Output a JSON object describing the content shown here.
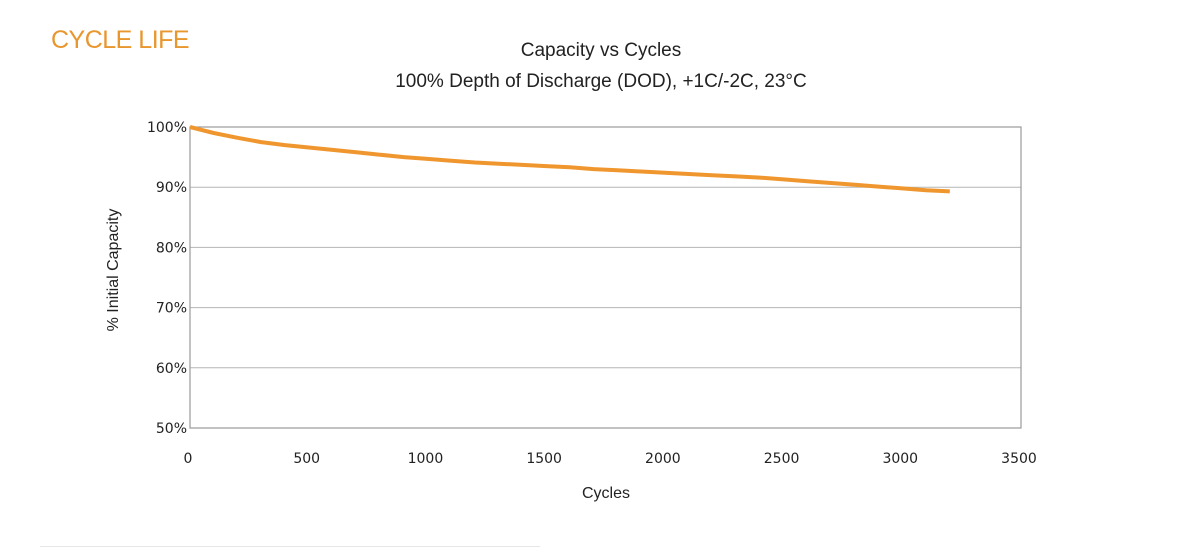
{
  "section_title": "CYCLE LIFE",
  "chart_data": {
    "type": "line",
    "title": "Capacity vs Cycles",
    "subtitle": "100% Depth of Discharge (DOD), +1C/-2C, 23°C",
    "xlabel": "Cycles",
    "ylabel": "% Initial Capacity",
    "xlim": [
      0,
      3500
    ],
    "ylim": [
      50,
      100
    ],
    "x_ticks": [
      0,
      500,
      1000,
      1500,
      2000,
      2500,
      3000,
      3500
    ],
    "x_tick_labels": [
      "0",
      "500",
      "1000",
      "1500",
      "2000",
      "2500",
      "3000",
      "3500"
    ],
    "y_ticks": [
      50,
      60,
      70,
      80,
      90,
      100
    ],
    "y_tick_labels": [
      "50%",
      "60%",
      "70%",
      "80%",
      "90%",
      "100%"
    ],
    "grid": true,
    "series": [
      {
        "name": "Capacity",
        "color": "#f0962e",
        "x": [
          0,
          100,
          200,
          300,
          400,
          500,
          600,
          700,
          800,
          900,
          1000,
          1100,
          1200,
          1300,
          1400,
          1500,
          1600,
          1700,
          1800,
          1900,
          2000,
          2100,
          2200,
          2300,
          2400,
          2500,
          2600,
          2700,
          2800,
          2900,
          3000,
          3100,
          3200
        ],
        "values": [
          100,
          99.0,
          98.2,
          97.5,
          97.0,
          96.6,
          96.2,
          95.8,
          95.4,
          95.0,
          94.7,
          94.4,
          94.1,
          93.9,
          93.7,
          93.5,
          93.3,
          93.0,
          92.8,
          92.6,
          92.4,
          92.2,
          92.0,
          91.8,
          91.6,
          91.3,
          91.0,
          90.7,
          90.4,
          90.1,
          89.8,
          89.5,
          89.3
        ]
      }
    ]
  }
}
